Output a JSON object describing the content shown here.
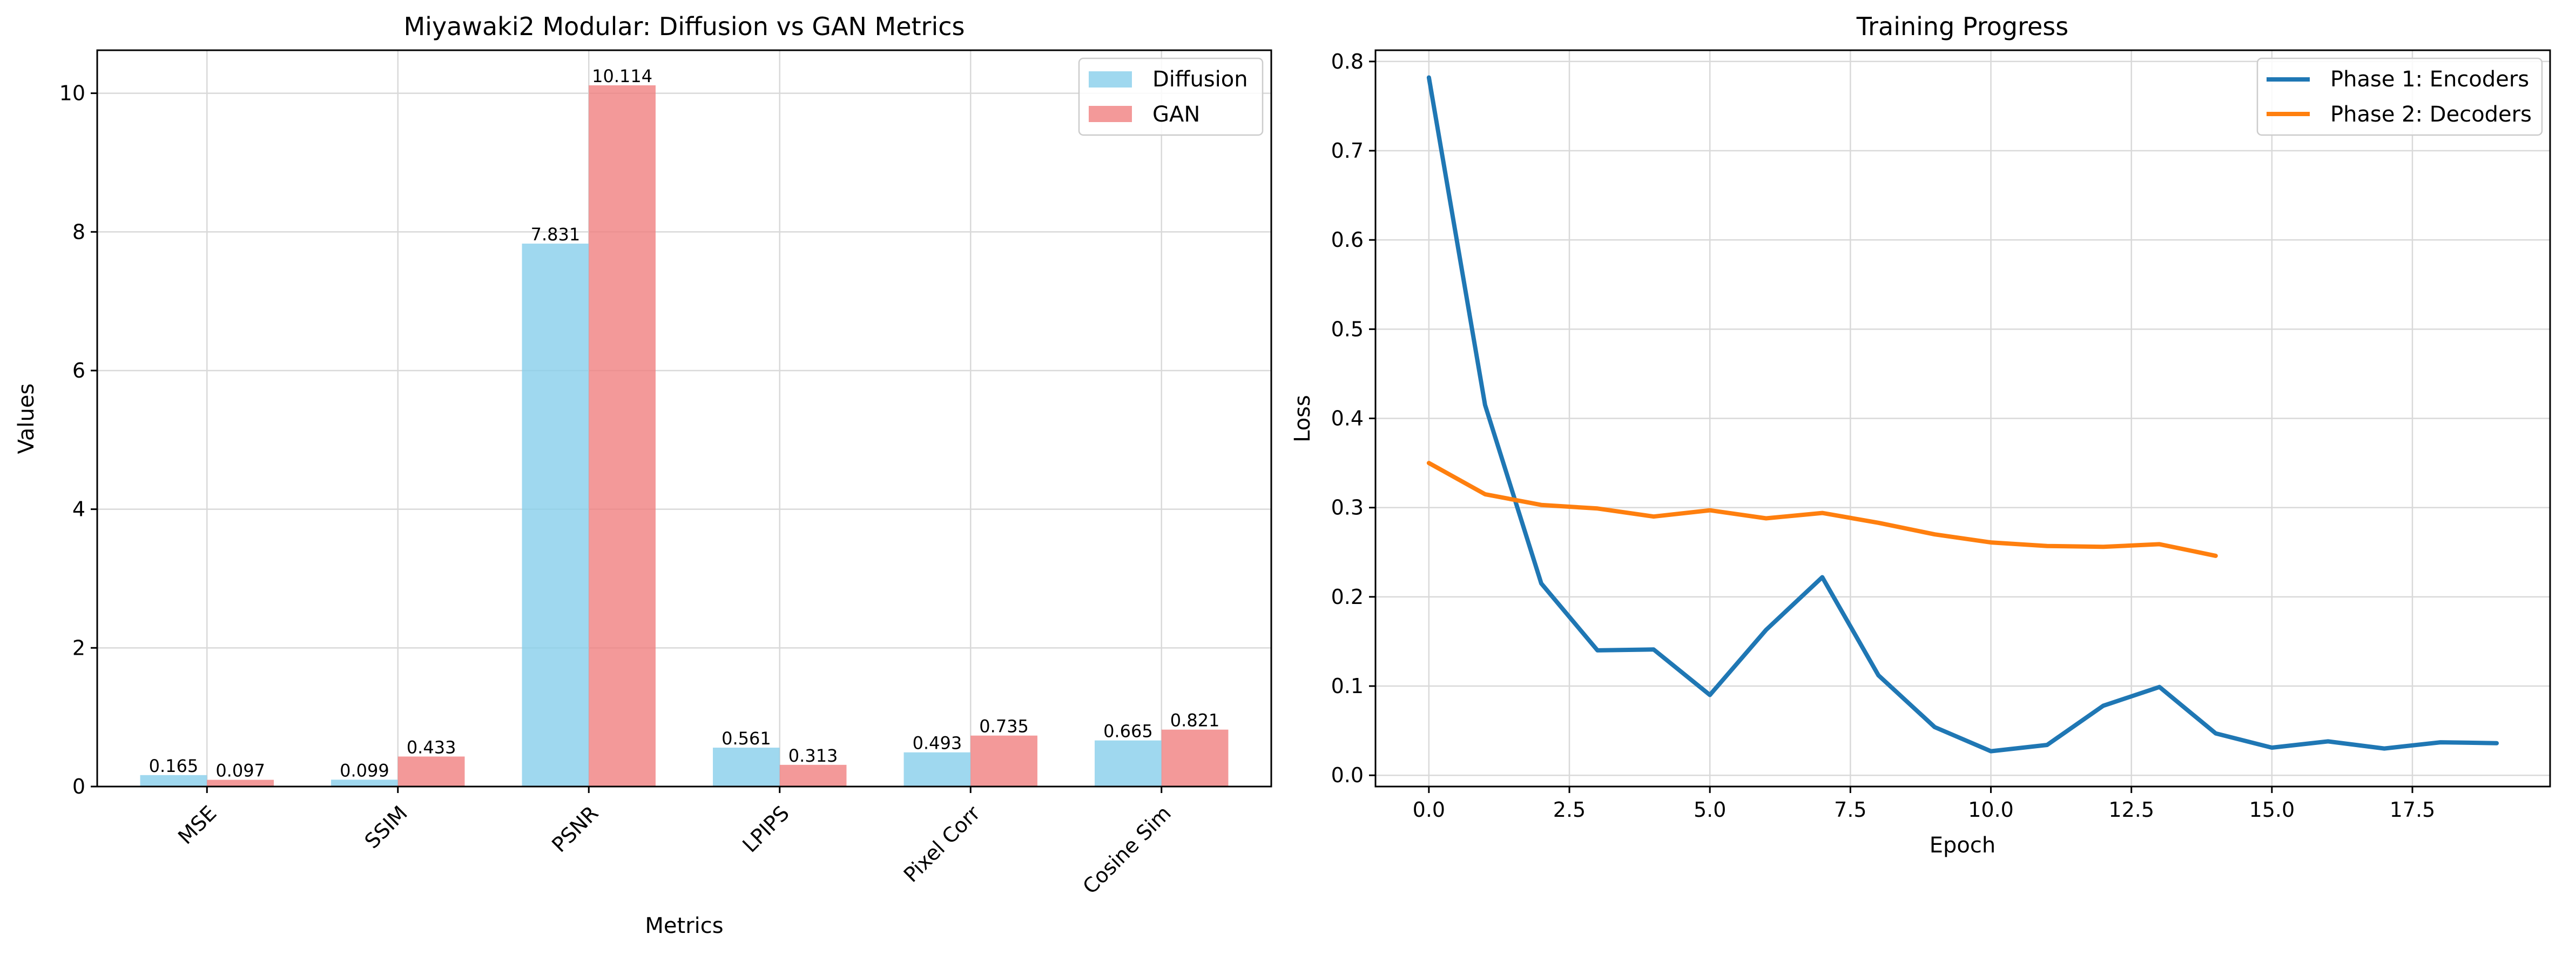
{
  "chart_data": [
    {
      "type": "bar",
      "title": "Miyawaki2 Modular: Diffusion vs GAN Metrics",
      "xlabel": "Metrics",
      "ylabel": "Values",
      "categories": [
        "MSE",
        "SSIM",
        "PSNR",
        "LPIPS",
        "Pixel Corr",
        "Cosine Sim"
      ],
      "series": [
        {
          "name": "Diffusion",
          "color": "#87ceeb",
          "values": [
            0.165,
            0.099,
            7.831,
            0.561,
            0.493,
            0.665
          ],
          "labels": [
            "0.165",
            "0.099",
            "7.831",
            "0.561",
            "0.493",
            "0.665"
          ]
        },
        {
          "name": "GAN",
          "color": "#f08080",
          "values": [
            0.097,
            0.433,
            10.114,
            0.313,
            0.735,
            0.821
          ],
          "labels": [
            "0.097",
            "0.433",
            "10.114",
            "0.313",
            "0.735",
            "0.821"
          ]
        }
      ],
      "ylim": [
        0,
        10.62
      ],
      "yticks": [
        0,
        2,
        4,
        6,
        8,
        10
      ],
      "ytick_labels": [
        "0",
        "2",
        "4",
        "6",
        "8",
        "10"
      ],
      "grid": true,
      "legend": "top-right"
    },
    {
      "type": "line",
      "title": "Training Progress",
      "xlabel": "Epoch",
      "ylabel": "Loss",
      "series": [
        {
          "name": "Phase 1: Encoders",
          "color": "#1f77b4",
          "x": [
            0,
            1,
            2,
            3,
            4,
            5,
            6,
            7,
            8,
            9,
            10,
            11,
            12,
            13,
            14,
            15,
            16,
            17,
            18,
            19
          ],
          "y": [
            0.782,
            0.415,
            0.215,
            0.14,
            0.141,
            0.09,
            0.163,
            0.222,
            0.112,
            0.054,
            0.027,
            0.034,
            0.078,
            0.099,
            0.047,
            0.031,
            0.038,
            0.03,
            0.037,
            0.036
          ]
        },
        {
          "name": "Phase 2: Decoders",
          "color": "#ff7f0e",
          "x": [
            0,
            1,
            2,
            3,
            4,
            5,
            6,
            7,
            8,
            9,
            10,
            11,
            12,
            13,
            14
          ],
          "y": [
            0.35,
            0.315,
            0.303,
            0.299,
            0.29,
            0.297,
            0.288,
            0.294,
            0.283,
            0.27,
            0.261,
            0.257,
            0.256,
            0.259,
            0.246
          ]
        }
      ],
      "xlim": [
        -0.95,
        19.95
      ],
      "ylim": [
        -0.0126,
        0.8126
      ],
      "xticks": [
        0,
        2.5,
        5,
        7.5,
        10,
        12.5,
        15,
        17.5
      ],
      "xtick_labels": [
        "0.0",
        "2.5",
        "5.0",
        "7.5",
        "10.0",
        "12.5",
        "15.0",
        "17.5"
      ],
      "yticks": [
        0,
        0.1,
        0.2,
        0.3,
        0.4,
        0.5,
        0.6,
        0.7,
        0.8
      ],
      "ytick_labels": [
        "0.0",
        "0.1",
        "0.2",
        "0.3",
        "0.4",
        "0.5",
        "0.6",
        "0.7",
        "0.8"
      ],
      "grid": true,
      "legend": "top-right"
    }
  ]
}
